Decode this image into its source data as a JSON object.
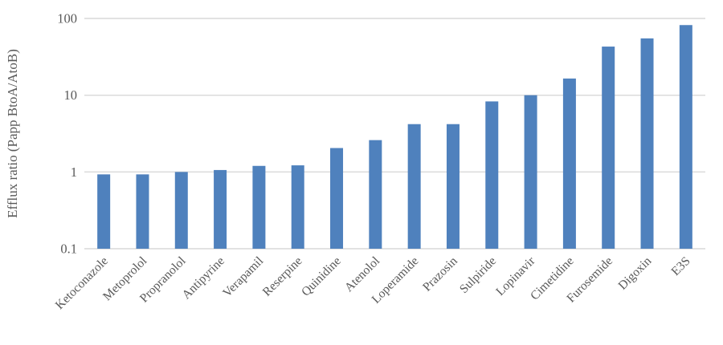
{
  "chart_data": {
    "type": "bar",
    "title": "",
    "xlabel": "",
    "ylabel": "Efflux ratio (Papp BtoA/AtoB)",
    "y_scale": "log",
    "ylim": [
      0.1,
      100
    ],
    "y_ticks": [
      0.1,
      1,
      10,
      100
    ],
    "y_tick_labels": [
      "0.1",
      "1",
      "10",
      "100"
    ],
    "grid": "horizontal-only",
    "legend_position": "none",
    "categories": [
      "Ketoconazole",
      "Metoprolol",
      "Propranolol",
      "Antipyrine",
      "Verapamil",
      "Reserpine",
      "Quinidine",
      "Atenolol",
      "Loperamide",
      "Prazosin",
      "Sulpiride",
      "Lopinavir",
      "Cimetidine",
      "Furosemide",
      "Digoxin",
      "E3S"
    ],
    "values": [
      0.93,
      0.93,
      1.0,
      1.06,
      1.2,
      1.22,
      2.05,
      2.6,
      4.2,
      4.2,
      8.3,
      10.0,
      16.5,
      43,
      55,
      82
    ],
    "colors": {
      "bar": "#4f81bd",
      "gridline": "#d9d9d9",
      "axis_line": "#d9d9d9",
      "text": "#595959"
    }
  }
}
